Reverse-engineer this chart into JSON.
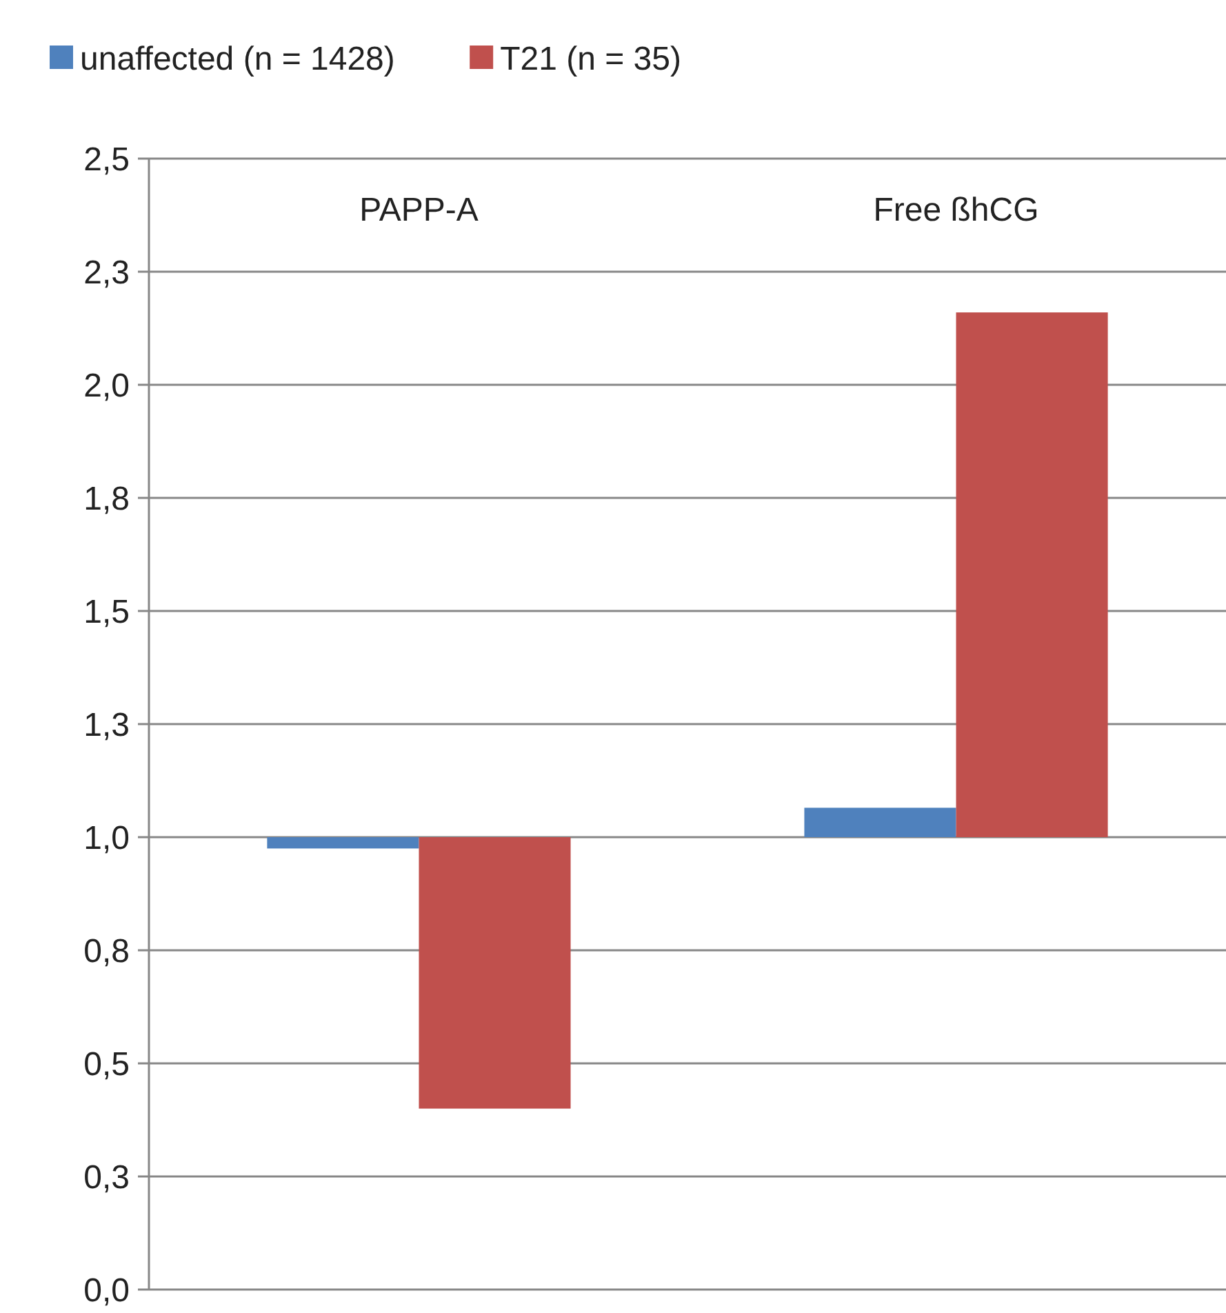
{
  "chart_data": {
    "type": "bar",
    "categories": [
      "PAPP-A",
      "Free ßhCG"
    ],
    "series": [
      {
        "name": "unaffected (n = 1428)",
        "color": "#4f81bd",
        "values": [
          -0.025,
          0.065
        ],
        "base": [
          1,
          1
        ]
      },
      {
        "name": "T21 (n = 35)",
        "color": "#c0504d",
        "values": [
          -0.6,
          1.16
        ],
        "base": [
          1,
          1
        ]
      }
    ],
    "ylim": [
      0,
      2.5
    ],
    "yticks": [
      {
        "value": 0,
        "label": "0,0"
      },
      {
        "value": 0.25,
        "label": "0,3"
      },
      {
        "value": 0.5,
        "label": "0,5"
      },
      {
        "value": 0.75,
        "label": "0,8"
      },
      {
        "value": 1,
        "label": "1,0"
      },
      {
        "value": 1.25,
        "label": "1,3"
      },
      {
        "value": 1.5,
        "label": "1,5"
      },
      {
        "value": 1.75,
        "label": "1,8"
      },
      {
        "value": 2,
        "label": "2,0"
      },
      {
        "value": 2.25,
        "label": "2,3"
      },
      {
        "value": 2.5,
        "label": "2,5"
      }
    ],
    "grid": "y",
    "legend": "top left"
  }
}
